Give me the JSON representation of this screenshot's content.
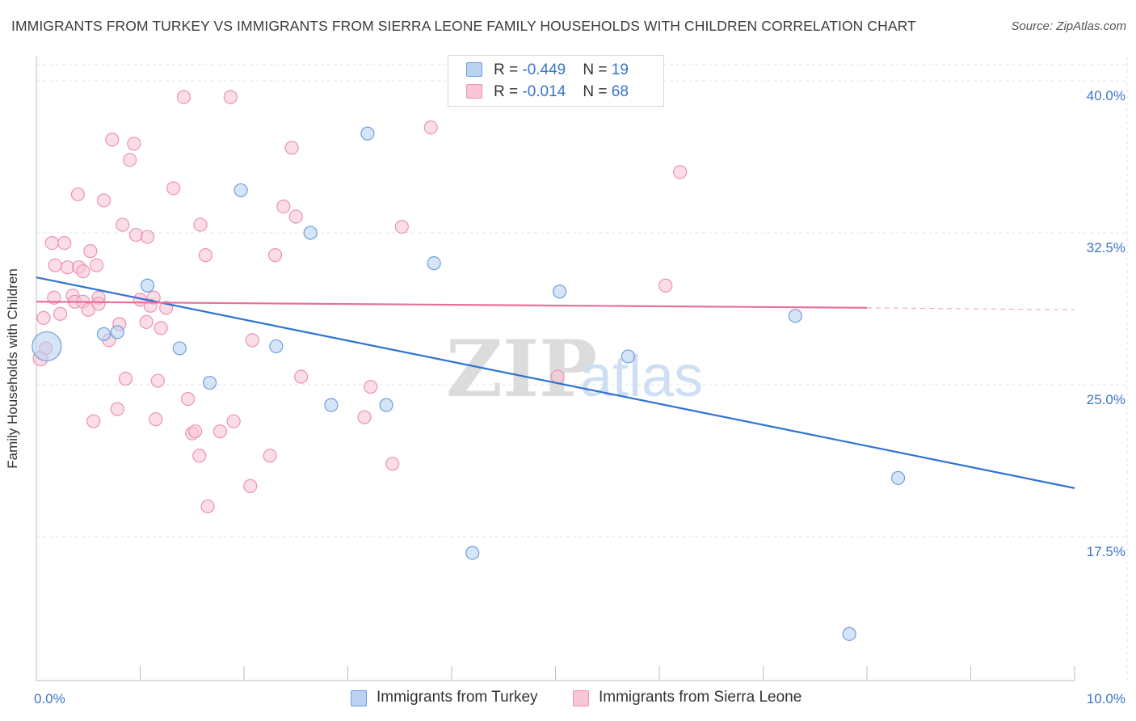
{
  "title": "IMMIGRANTS FROM TURKEY VS IMMIGRANTS FROM SIERRA LEONE FAMILY HOUSEHOLDS WITH CHILDREN CORRELATION CHART",
  "source": "Source: ZipAtlas.com",
  "watermark": {
    "zip": "ZIP",
    "atlas": "atlas"
  },
  "legend_stats": [
    {
      "r_label": "R = ",
      "r_value": "-0.449",
      "n_label": "N = ",
      "n_value": "19"
    },
    {
      "r_label": "R = ",
      "r_value": "-0.014",
      "n_label": "N = ",
      "n_value": "68"
    }
  ],
  "colors": {
    "turkey_fill": "#b9d2f2",
    "turkey_stroke": "#6e9fdc",
    "turkey_line": "#2f72d3",
    "sierra_fill": "#f9c6d6",
    "sierra_stroke": "#eb93b0",
    "sierra_line": "#e8709a",
    "tick_label": "#3a74c8",
    "grid": "#e3e3e3"
  },
  "chart_data": {
    "type": "scatter",
    "xlabel": "",
    "ylabel": "Family Households with Children",
    "xlim": [
      0,
      10
    ],
    "ylim": [
      10.4,
      41.2
    ],
    "x_tick_labels": [
      {
        "value": 0,
        "label": "0.0%"
      },
      {
        "value": 10,
        "label": "10.0%"
      }
    ],
    "y_ticks": [
      {
        "value": 17.5,
        "label": "17.5%"
      },
      {
        "value": 25.0,
        "label": "25.0%"
      },
      {
        "value": 32.5,
        "label": "32.5%"
      },
      {
        "value": 40.0,
        "label": "40.0%"
      }
    ],
    "grid": true,
    "legend": "bottom",
    "series": [
      {
        "name": "Immigrants from Turkey",
        "r": -0.449,
        "n": 19,
        "trend": {
          "x0": 0,
          "y0": 30.3,
          "x1": 10,
          "y1": 19.9
        },
        "points": [
          [
            0.1,
            26.9,
            18
          ],
          [
            0.65,
            27.5,
            8
          ],
          [
            0.78,
            27.6,
            8
          ],
          [
            1.07,
            29.9,
            8
          ],
          [
            1.38,
            26.8,
            8
          ],
          [
            1.67,
            25.1,
            8
          ],
          [
            1.97,
            34.6,
            8
          ],
          [
            2.31,
            26.9,
            8
          ],
          [
            2.64,
            32.5,
            8
          ],
          [
            2.84,
            24.0,
            8
          ],
          [
            3.19,
            37.4,
            8
          ],
          [
            3.37,
            24.0,
            8
          ],
          [
            3.83,
            31.0,
            8
          ],
          [
            4.2,
            16.7,
            8
          ],
          [
            5.04,
            29.6,
            8
          ],
          [
            5.7,
            26.4,
            8
          ],
          [
            7.31,
            28.4,
            8
          ],
          [
            8.3,
            20.4,
            8
          ],
          [
            7.83,
            12.7,
            8
          ]
        ]
      },
      {
        "name": "Immigrants from Sierra Leone",
        "r": -0.014,
        "n": 68,
        "trend": {
          "x0": 0,
          "y0": 29.1,
          "x1": 8.0,
          "y1": 28.8
        },
        "trend_dash": {
          "x0": 8.0,
          "y0": 28.8,
          "x1": 10,
          "y1": 28.7
        },
        "points": [
          [
            0.04,
            26.3,
            9
          ],
          [
            0.07,
            28.3,
            8
          ],
          [
            0.09,
            26.8,
            8
          ],
          [
            0.15,
            32.0,
            8
          ],
          [
            0.17,
            29.3,
            8
          ],
          [
            0.18,
            30.9,
            8
          ],
          [
            0.23,
            28.5,
            8
          ],
          [
            0.27,
            32.0,
            8
          ],
          [
            0.3,
            30.8,
            8
          ],
          [
            0.35,
            29.4,
            8
          ],
          [
            0.37,
            29.1,
            8
          ],
          [
            0.4,
            34.4,
            8
          ],
          [
            0.41,
            30.8,
            8
          ],
          [
            0.45,
            29.1,
            8
          ],
          [
            0.5,
            28.7,
            8
          ],
          [
            0.52,
            31.6,
            8
          ],
          [
            0.55,
            23.2,
            8
          ],
          [
            0.58,
            30.9,
            8
          ],
          [
            0.6,
            29.3,
            8
          ],
          [
            0.65,
            34.1,
            8
          ],
          [
            0.7,
            27.2,
            8
          ],
          [
            0.73,
            37.1,
            8
          ],
          [
            0.78,
            23.8,
            8
          ],
          [
            0.8,
            28.0,
            8
          ],
          [
            0.83,
            32.9,
            8
          ],
          [
            0.86,
            25.3,
            8
          ],
          [
            0.9,
            36.1,
            8
          ],
          [
            0.94,
            36.9,
            8
          ],
          [
            0.96,
            32.4,
            8
          ],
          [
            1.0,
            29.2,
            8
          ],
          [
            1.06,
            28.1,
            8
          ],
          [
            1.07,
            32.3,
            8
          ],
          [
            1.13,
            29.3,
            8
          ],
          [
            1.15,
            23.3,
            8
          ],
          [
            1.17,
            25.2,
            8
          ],
          [
            1.2,
            27.8,
            8
          ],
          [
            1.25,
            28.8,
            8
          ],
          [
            1.32,
            34.7,
            8
          ],
          [
            1.42,
            39.2,
            8
          ],
          [
            1.46,
            24.3,
            8
          ],
          [
            1.5,
            22.6,
            8
          ],
          [
            1.53,
            22.7,
            8
          ],
          [
            1.57,
            21.5,
            8
          ],
          [
            1.58,
            32.9,
            8
          ],
          [
            1.63,
            31.4,
            8
          ],
          [
            1.65,
            19.0,
            8
          ],
          [
            1.77,
            22.7,
            8
          ],
          [
            1.87,
            39.2,
            8
          ],
          [
            1.9,
            23.2,
            8
          ],
          [
            2.06,
            20.0,
            8
          ],
          [
            2.08,
            27.2,
            8
          ],
          [
            2.25,
            21.5,
            8
          ],
          [
            2.3,
            31.4,
            8
          ],
          [
            2.38,
            33.8,
            8
          ],
          [
            2.46,
            36.7,
            8
          ],
          [
            2.5,
            33.3,
            8
          ],
          [
            2.55,
            25.4,
            8
          ],
          [
            3.16,
            23.4,
            8
          ],
          [
            3.22,
            24.9,
            8
          ],
          [
            3.43,
            21.1,
            8
          ],
          [
            3.52,
            32.8,
            8
          ],
          [
            3.8,
            37.7,
            8
          ],
          [
            5.02,
            25.4,
            8
          ],
          [
            6.06,
            29.9,
            8
          ],
          [
            6.2,
            35.5,
            8
          ],
          [
            0.6,
            29.0,
            8
          ],
          [
            1.1,
            28.9,
            8
          ],
          [
            0.45,
            30.6,
            8
          ]
        ]
      }
    ]
  }
}
